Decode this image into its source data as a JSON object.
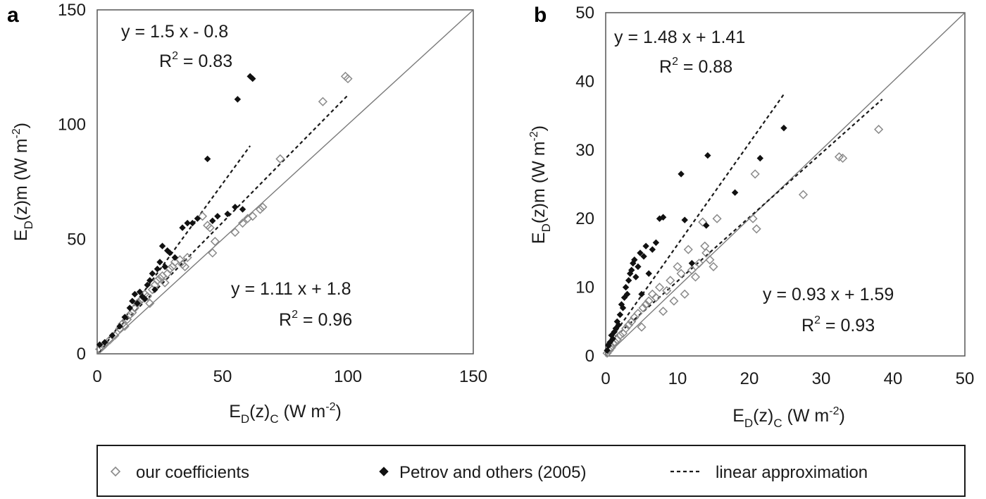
{
  "chart_data": [
    {
      "panel": "a",
      "type": "scatter",
      "xlabel": {
        "base": "E",
        "sub1": "D",
        "mid": "(z)",
        "sub2": "C",
        "unit": " (W m",
        "sup": "-2",
        "end": ")"
      },
      "ylabel": {
        "base": "E",
        "sub1": "D",
        "mid": "(z)m",
        "unit": " (W m",
        "sup": "-2",
        "end": ")"
      },
      "xlim": [
        0,
        150
      ],
      "ylim": [
        0,
        150
      ],
      "xticks": [
        "0",
        "50",
        "100",
        "150"
      ],
      "yticks": [
        "0",
        "50",
        "100",
        "150"
      ],
      "grid": false,
      "identity_line": true,
      "annotations": [
        {
          "equation": "y = 1.5 x - 0.8",
          "r2_base": "R",
          "r2_sup": "2",
          "r2_value": " = 0.83"
        },
        {
          "equation": "y = 1.11 x + 1.8",
          "r2_base": "R",
          "r2_sup": "2",
          "r2_value": " = 0.96"
        }
      ],
      "series": [
        {
          "name": "our coefficients",
          "marker": "diamond-open",
          "points": [
            [
              1,
              2
            ],
            [
              2,
              3
            ],
            [
              3,
              4
            ],
            [
              5,
              6
            ],
            [
              7,
              8
            ],
            [
              9,
              11
            ],
            [
              10,
              13
            ],
            [
              11,
              12
            ],
            [
              12,
              15
            ],
            [
              13,
              17
            ],
            [
              14,
              18
            ],
            [
              15,
              20
            ],
            [
              16,
              22
            ],
            [
              17,
              23
            ],
            [
              18,
              24
            ],
            [
              19,
              26
            ],
            [
              20,
              25
            ],
            [
              21,
              22
            ],
            [
              22,
              28
            ],
            [
              23,
              30
            ],
            [
              24,
              32
            ],
            [
              25,
              33
            ],
            [
              26,
              34
            ],
            [
              27,
              31
            ],
            [
              28,
              35
            ],
            [
              29,
              37
            ],
            [
              30,
              38
            ],
            [
              31,
              40
            ],
            [
              33,
              41
            ],
            [
              34,
              39
            ],
            [
              35,
              38
            ],
            [
              36,
              42
            ],
            [
              42,
              60
            ],
            [
              44,
              56
            ],
            [
              45,
              55
            ],
            [
              46,
              44
            ],
            [
              47,
              49
            ],
            [
              55,
              53
            ],
            [
              58,
              57
            ],
            [
              60,
              59
            ],
            [
              62,
              60
            ],
            [
              65,
              63
            ],
            [
              66,
              64
            ],
            [
              73,
              85
            ],
            [
              90,
              110
            ],
            [
              99,
              121
            ],
            [
              100,
              120
            ]
          ]
        },
        {
          "name": "Petrov and others (2005)",
          "marker": "diamond-filled",
          "points": [
            [
              1,
              4
            ],
            [
              3,
              5
            ],
            [
              6,
              8
            ],
            [
              9,
              12
            ],
            [
              11,
              16
            ],
            [
              13,
              20
            ],
            [
              14,
              23
            ],
            [
              15,
              26
            ],
            [
              16,
              22
            ],
            [
              17,
              27
            ],
            [
              18,
              25
            ],
            [
              19,
              24
            ],
            [
              20,
              30
            ],
            [
              21,
              32
            ],
            [
              22,
              35
            ],
            [
              23,
              28
            ],
            [
              24,
              37
            ],
            [
              25,
              40
            ],
            [
              26,
              47
            ],
            [
              27,
              38
            ],
            [
              28,
              45
            ],
            [
              29,
              44
            ],
            [
              31,
              42
            ],
            [
              34,
              55
            ],
            [
              36,
              57
            ],
            [
              38,
              57
            ],
            [
              40,
              59
            ],
            [
              44,
              85
            ],
            [
              46,
              58
            ],
            [
              48,
              60
            ],
            [
              52,
              61
            ],
            [
              55,
              64
            ],
            [
              56,
              111
            ],
            [
              58,
              63
            ],
            [
              61,
              121
            ],
            [
              62,
              120
            ]
          ]
        }
      ],
      "fit_lines": [
        {
          "series": "Petrov and others (2005)",
          "slope": 1.5,
          "intercept": -0.8,
          "x_range": [
            1,
            61
          ]
        },
        {
          "series": "our coefficients",
          "slope": 1.11,
          "intercept": 1.8,
          "x_range": [
            1,
            100
          ]
        }
      ]
    },
    {
      "panel": "b",
      "type": "scatter",
      "xlabel": {
        "base": "E",
        "sub1": "D",
        "mid": "(z)",
        "sub2": "C",
        "unit": " (W m",
        "sup": "-2",
        "end": ")"
      },
      "ylabel": {
        "base": "E",
        "sub1": "D",
        "mid": "(z)m",
        "unit": " (W m",
        "sup": "-2",
        "end": ")"
      },
      "xlim": [
        0,
        50
      ],
      "ylim": [
        0,
        50
      ],
      "xticks": [
        "0",
        "10",
        "20",
        "30",
        "40",
        "50"
      ],
      "yticks": [
        "0",
        "10",
        "20",
        "30",
        "40",
        "50"
      ],
      "grid": false,
      "identity_line": true,
      "annotations": [
        {
          "equation": "y = 1.48 x + 1.41",
          "r2_base": "R",
          "r2_sup": "2",
          "r2_value": " = 0.88"
        },
        {
          "equation": "y = 0.93 x + 1.59",
          "r2_base": "R",
          "r2_sup": "2",
          "r2_value": " = 0.93"
        }
      ],
      "series": [
        {
          "name": "our coefficients",
          "marker": "diamond-open",
          "points": [
            [
              0.2,
              0.4
            ],
            [
              0.5,
              0.8
            ],
            [
              0.8,
              1.2
            ],
            [
              1.0,
              1.8
            ],
            [
              1.3,
              2.0
            ],
            [
              1.6,
              2.4
            ],
            [
              2.0,
              3.0
            ],
            [
              2.4,
              3.3
            ],
            [
              2.8,
              4.0
            ],
            [
              3.2,
              4.5
            ],
            [
              3.6,
              5.0
            ],
            [
              4.0,
              5.6
            ],
            [
              4.5,
              6.2
            ],
            [
              5.0,
              4.2
            ],
            [
              5.2,
              7.0
            ],
            [
              5.6,
              7.5
            ],
            [
              6.0,
              8.0
            ],
            [
              6.5,
              9.0
            ],
            [
              7.0,
              8.5
            ],
            [
              7.5,
              10.0
            ],
            [
              8.0,
              6.5
            ],
            [
              8.5,
              9.5
            ],
            [
              9.0,
              11.0
            ],
            [
              9.5,
              8.0
            ],
            [
              10.0,
              13.0
            ],
            [
              10.5,
              12.0
            ],
            [
              11.0,
              9.0
            ],
            [
              11.5,
              15.5
            ],
            [
              12.0,
              12.5
            ],
            [
              12.5,
              11.5
            ],
            [
              13.0,
              13.5
            ],
            [
              13.5,
              19.5
            ],
            [
              13.8,
              16.0
            ],
            [
              14.0,
              15.0
            ],
            [
              14.5,
              14.0
            ],
            [
              15.0,
              13.0
            ],
            [
              15.5,
              20.0
            ],
            [
              20.5,
              20.0
            ],
            [
              20.8,
              26.5
            ],
            [
              21.0,
              18.5
            ],
            [
              27.5,
              23.5
            ],
            [
              32.5,
              29.0
            ],
            [
              33.0,
              28.8
            ],
            [
              38.0,
              33.0
            ]
          ]
        },
        {
          "name": "Petrov and others (2005)",
          "marker": "diamond-filled",
          "points": [
            [
              0.2,
              0.8
            ],
            [
              0.4,
              1.5
            ],
            [
              0.6,
              2.0
            ],
            [
              0.8,
              3.0
            ],
            [
              1.0,
              2.5
            ],
            [
              1.2,
              3.5
            ],
            [
              1.4,
              4.0
            ],
            [
              1.6,
              5.0
            ],
            [
              1.8,
              4.5
            ],
            [
              2.0,
              6.0
            ],
            [
              2.2,
              7.5
            ],
            [
              2.4,
              7.0
            ],
            [
              2.6,
              8.5
            ],
            [
              2.8,
              10.0
            ],
            [
              3.0,
              9.0
            ],
            [
              3.2,
              11.0
            ],
            [
              3.4,
              12.0
            ],
            [
              3.6,
              12.5
            ],
            [
              3.8,
              13.5
            ],
            [
              4.0,
              14.0
            ],
            [
              4.2,
              11.5
            ],
            [
              4.5,
              13.0
            ],
            [
              4.8,
              15.0
            ],
            [
              5.0,
              9.0
            ],
            [
              5.3,
              14.5
            ],
            [
              5.6,
              16.0
            ],
            [
              6.0,
              12.0
            ],
            [
              6.5,
              15.5
            ],
            [
              7.0,
              16.5
            ],
            [
              7.5,
              20.0
            ],
            [
              8.0,
              20.2
            ],
            [
              10.5,
              26.5
            ],
            [
              11.0,
              19.8
            ],
            [
              12.0,
              13.5
            ],
            [
              14.0,
              19.0
            ],
            [
              14.2,
              29.2
            ],
            [
              18.0,
              23.8
            ],
            [
              21.5,
              28.8
            ],
            [
              24.8,
              33.2
            ]
          ]
        }
      ],
      "fit_lines": [
        {
          "series": "Petrov and others (2005)",
          "slope": 1.48,
          "intercept": 1.41,
          "x_range": [
            0,
            24.8
          ]
        },
        {
          "series": "our coefficients",
          "slope": 0.93,
          "intercept": 1.59,
          "x_range": [
            0,
            38.5
          ]
        }
      ]
    }
  ],
  "legend": {
    "items": [
      {
        "label": "our coefficients",
        "marker": "diamond-open"
      },
      {
        "label": "Petrov and others (2005)",
        "marker": "diamond-filled"
      },
      {
        "label": "linear approximation",
        "marker": "dashed-line"
      }
    ],
    "placement": "bottom"
  },
  "colors": {
    "open_marker": "#8a8a8a",
    "filled_marker": "#111111",
    "identity": "#7a7a7a",
    "fit": "#1a1a1a",
    "frame": "#555555"
  }
}
